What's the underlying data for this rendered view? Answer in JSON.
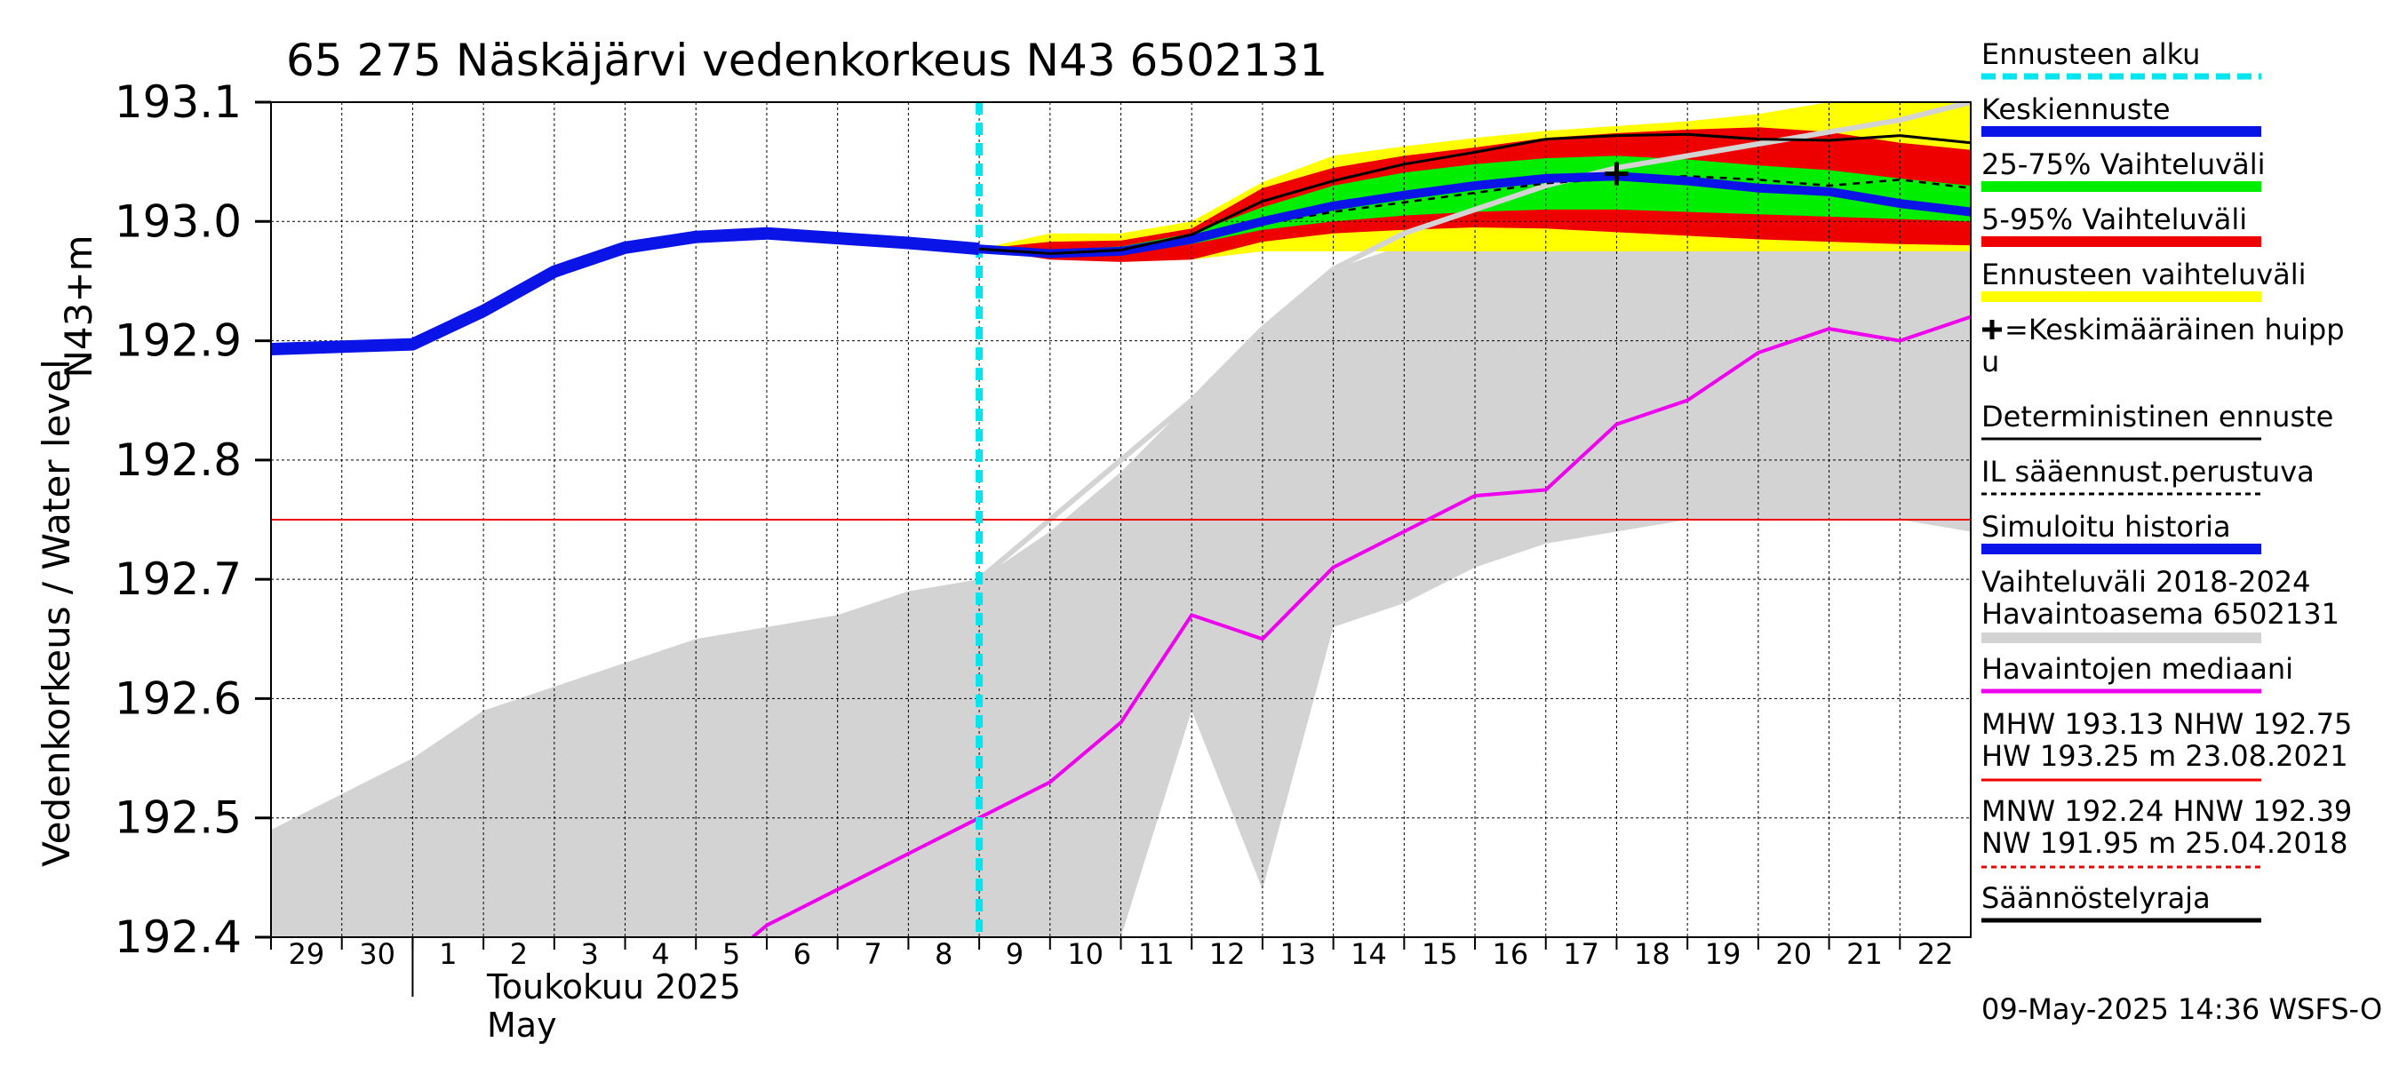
{
  "chart_data": {
    "type": "line",
    "title": "65 275 Näskäjärvi vedenkorkeus N43 6502131",
    "ylabel": "Vedenkorkeus / Water level",
    "yunit": "N43+m",
    "ylim": [
      192.4,
      193.1
    ],
    "yticks": [
      "192.4",
      "192.5",
      "192.6",
      "192.7",
      "192.8",
      "192.9",
      "193.0",
      "193.1"
    ],
    "xlim": [
      -0.5,
      23.5
    ],
    "xtick_labels": [
      "29",
      "30",
      "1",
      "2",
      "3",
      "4",
      "5",
      "6",
      "7",
      "8",
      "9",
      "10",
      "11",
      "12",
      "13",
      "14",
      "15",
      "16",
      "17",
      "18",
      "19",
      "20",
      "21",
      "22"
    ],
    "month_label": "Toukokuu  2025",
    "month_label_en": "May",
    "forecast_start_x": 9.5,
    "regulation_limit": 192.75,
    "series": {
      "simulated_history": {
        "name": "Simuloitu historia",
        "color": "#0a14e6",
        "x": [
          -0.5,
          1.5,
          2.5,
          3.5,
          4.5,
          5.5,
          6.5,
          7.5,
          8.5,
          9.5
        ],
        "y": [
          192.893,
          192.897,
          192.925,
          192.958,
          192.978,
          192.987,
          192.99,
          192.986,
          192.982,
          192.977
        ]
      },
      "mean_forecast": {
        "name": "Keskiennuste",
        "color": "#0a14e6",
        "x": [
          9.5,
          10.5,
          11.5,
          12.5,
          13.5,
          14.5,
          15.5,
          16.5,
          17.5,
          18.5,
          19.5,
          20.5,
          21.5,
          22.5,
          23.5
        ],
        "y": [
          192.977,
          192.973,
          192.975,
          192.985,
          193.0,
          193.013,
          193.022,
          193.03,
          193.036,
          193.038,
          193.034,
          193.028,
          193.025,
          193.015,
          193.008
        ]
      },
      "band_25_75": {
        "name": "25-75% Vaihteluväli",
        "color": "#00ee00",
        "x": [
          9.5,
          10.5,
          11.5,
          12.5,
          13.5,
          14.5,
          15.5,
          16.5,
          17.5,
          18.5,
          19.5,
          20.5,
          21.5,
          22.5,
          23.5
        ],
        "low": [
          192.977,
          192.972,
          192.973,
          192.981,
          192.993,
          193.0,
          193.005,
          193.008,
          193.01,
          193.01,
          193.008,
          193.006,
          193.004,
          193.002,
          193.0
        ],
        "high": [
          192.977,
          192.976,
          192.979,
          192.99,
          193.012,
          193.03,
          193.041,
          193.048,
          193.053,
          193.055,
          193.052,
          193.047,
          193.043,
          193.036,
          193.03
        ]
      },
      "band_5_95": {
        "name": "5-95% Vaihteluväli",
        "color": "#ee0000",
        "x": [
          9.5,
          10.5,
          11.5,
          12.5,
          13.5,
          14.5,
          15.5,
          16.5,
          17.5,
          18.5,
          19.5,
          20.5,
          21.5,
          22.5,
          23.5
        ],
        "low": [
          192.977,
          192.968,
          192.966,
          192.968,
          192.983,
          192.99,
          192.993,
          192.995,
          192.994,
          192.991,
          192.988,
          192.985,
          192.983,
          192.981,
          192.98
        ],
        "high": [
          192.977,
          192.983,
          192.984,
          192.994,
          193.028,
          193.045,
          193.055,
          193.062,
          193.07,
          193.074,
          193.077,
          193.079,
          193.075,
          193.066,
          193.06
        ]
      },
      "forecast_range": {
        "name": "Ennusteen vaihteluväli",
        "color": "#ffff00",
        "x": [
          9.5,
          10.5,
          11.5,
          12.5,
          13.5,
          14.5,
          15.5,
          16.5,
          17.5,
          18.5,
          19.5,
          20.5,
          21.5,
          22.5,
          23.5
        ],
        "low": [
          192.977,
          192.97,
          192.968,
          192.968,
          192.975,
          192.975,
          192.975,
          192.975,
          192.975,
          192.975,
          192.975,
          192.975,
          192.975,
          192.975,
          192.975
        ],
        "high": [
          192.977,
          192.99,
          192.99,
          193.0,
          193.033,
          193.055,
          193.063,
          193.07,
          193.076,
          193.08,
          193.084,
          193.09,
          193.1,
          193.1,
          193.1
        ]
      },
      "deterministic": {
        "name": "Deterministinen ennuste",
        "color": "#000000",
        "x": [
          9.5,
          10.5,
          11.5,
          12.5,
          13.5,
          14.5,
          15.5,
          16.5,
          17.5,
          18.5,
          19.5,
          20.5,
          21.5,
          22.5,
          23.5
        ],
        "y": [
          192.977,
          192.973,
          192.976,
          192.989,
          193.017,
          193.034,
          193.048,
          193.058,
          193.069,
          193.072,
          193.073,
          193.069,
          193.068,
          193.072,
          193.066
        ]
      },
      "il_forecast": {
        "name": "IL sääennust.perustuva",
        "color": "#000000",
        "x": [
          9.5,
          10.5,
          11.5,
          12.5,
          13.5,
          14.5,
          15.5,
          16.5,
          17.5,
          18.5,
          19.5,
          20.5,
          21.5,
          22.5,
          23.5
        ],
        "y": [
          192.977,
          192.974,
          192.976,
          192.984,
          192.998,
          193.008,
          193.016,
          193.024,
          193.032,
          193.036,
          193.038,
          193.035,
          193.03,
          193.035,
          193.028
        ]
      },
      "mean_peak": {
        "name": "+=Keskimääräinen huippu",
        "x": 18.5,
        "y": 193.04
      },
      "historical_range": {
        "name": "Vaihteluväli 2018-2024 Havaintoasema 6502131",
        "color": "#d3d3d3",
        "x": [
          -0.5,
          1.5,
          2.5,
          3.5,
          4.5,
          5.5,
          6.5,
          7.5,
          8.5,
          9.5,
          10.5,
          11.5,
          12.5,
          13.5,
          14.5,
          15.5,
          16.5,
          17.5,
          18.5,
          19.5,
          20.5,
          21.5,
          22.5,
          23.5
        ],
        "low": [
          192.4,
          192.4,
          192.4,
          192.4,
          192.4,
          192.4,
          192.4,
          192.4,
          192.4,
          192.4,
          192.4,
          192.4,
          192.59,
          192.44,
          192.66,
          192.68,
          192.71,
          192.73,
          192.74,
          192.75,
          192.75,
          192.75,
          192.75,
          192.74
        ],
        "high": [
          192.49,
          192.55,
          192.59,
          192.61,
          192.63,
          192.65,
          192.66,
          192.67,
          192.69,
          192.7,
          192.74,
          192.79,
          192.85,
          192.91,
          192.96,
          192.98,
          192.98,
          192.98,
          192.98,
          192.98,
          192.98,
          192.98,
          192.98,
          192.98
        ]
      },
      "historical_max": {
        "color": "#d3d3d3",
        "x": [
          9.5,
          10.5,
          11.5,
          12.5,
          13.5,
          14.5,
          15.5,
          16.5,
          17.5,
          18.5,
          19.5,
          20.5,
          21.5,
          22.5,
          23.5
        ],
        "y": [
          192.7,
          192.75,
          192.8,
          192.85,
          192.91,
          192.96,
          192.99,
          193.01,
          193.03,
          193.045,
          193.055,
          193.065,
          193.075,
          193.085,
          193.1
        ]
      },
      "observed_median": {
        "name": "Havaintojen mediaani",
        "color": "#ee00ee",
        "x": [
          6.3,
          6.5,
          7.5,
          8.5,
          9.5,
          10.5,
          11.5,
          12.5,
          13.5,
          14.5,
          15.5,
          16.5,
          17.5,
          18.5,
          19.5,
          20.5,
          21.5,
          22.5,
          23.5
        ],
        "y": [
          192.4,
          192.41,
          192.44,
          192.47,
          192.5,
          192.53,
          192.58,
          192.67,
          192.65,
          192.71,
          192.74,
          192.77,
          192.775,
          192.83,
          192.85,
          192.89,
          192.91,
          192.9,
          192.92
        ]
      }
    },
    "legend": [
      {
        "key": "forecast_start",
        "label": "Ennusteen alku",
        "color": "#00e5ee",
        "style": "dashed"
      },
      {
        "key": "mean_forecast",
        "label": "Keskiennuste",
        "color": "#0a14e6",
        "style": "thick"
      },
      {
        "key": "band_25_75",
        "label": "25-75% Vaihteluväli",
        "color": "#00ee00",
        "style": "thick"
      },
      {
        "key": "band_5_95",
        "label": "5-95% Vaihteluväli",
        "color": "#ee0000",
        "style": "thick"
      },
      {
        "key": "forecast_range",
        "label": "Ennusteen vaihteluväli",
        "color": "#ffff00",
        "style": "thick"
      },
      {
        "key": "mean_peak",
        "label": "=Keskimääräinen huipp",
        "label2": "u",
        "color": "#000000",
        "style": "none"
      },
      {
        "key": "deterministic",
        "label": "Deterministinen ennuste",
        "color": "#000000",
        "style": "thin"
      },
      {
        "key": "il_forecast",
        "label": "IL sääennust.perustuva",
        "color": "#000000",
        "style": "dotted"
      },
      {
        "key": "simulated_history",
        "label": "Simuloitu historia",
        "color": "#0a14e6",
        "style": "thick"
      },
      {
        "key": "historical_range",
        "label": "Vaihteluväli 2018-2024",
        "label2": " Havaintoasema 6502131",
        "color": "#d3d3d3",
        "style": "thick"
      },
      {
        "key": "observed_median",
        "label": "Havaintojen mediaani",
        "color": "#ee00ee",
        "style": "medium"
      },
      {
        "key": "hw",
        "label": "MHW 193.13 NHW 192.75",
        "label2": "HW 193.25 m 23.08.2021",
        "color": "#ee0000",
        "style": "thin"
      },
      {
        "key": "nw",
        "label": "MNW 192.24 HNW 192.39",
        "label2": "NW 191.95 m 25.04.2018",
        "color": "#ee0000",
        "style": "dotted"
      },
      {
        "key": "regulation",
        "label": "Säännöstelyraja",
        "color": "#000000",
        "style": "medium"
      }
    ],
    "footer": "09-May-2025 14:36 WSFS-O"
  }
}
